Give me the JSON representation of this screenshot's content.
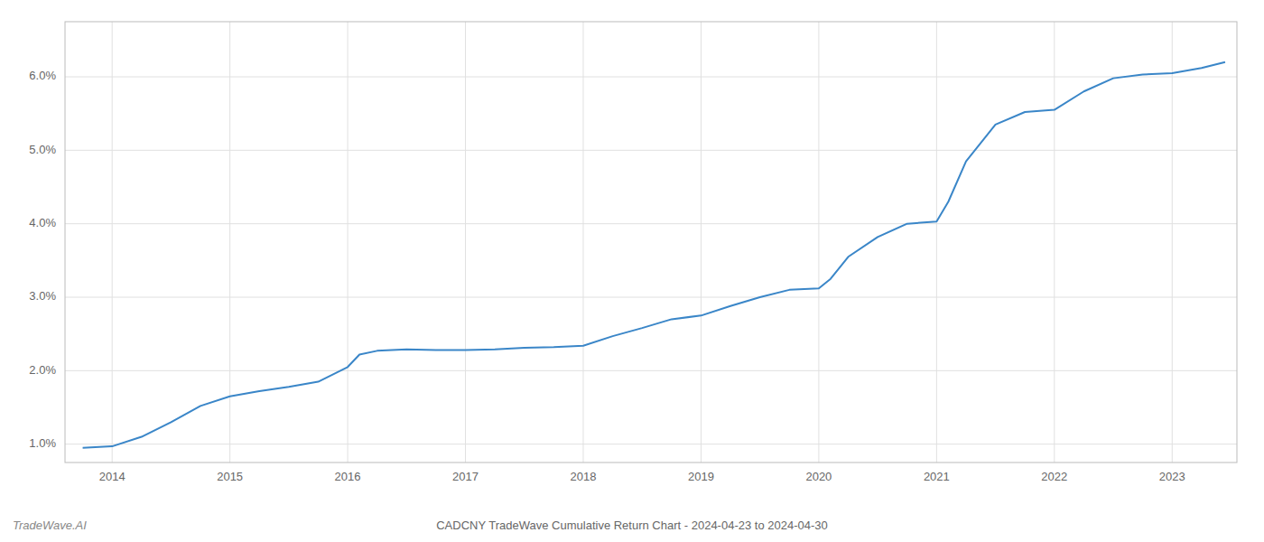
{
  "chart_data": {
    "type": "line",
    "title": "CADCNY TradeWave Cumulative Return Chart - 2024-04-23 to 2024-04-30",
    "annotations": [
      "TradeWave.AI"
    ],
    "color": "#3a86c8",
    "grid": true,
    "x": [
      2013.75,
      2014.0,
      2014.25,
      2014.5,
      2014.75,
      2015.0,
      2015.25,
      2015.5,
      2015.75,
      2016.0,
      2016.1,
      2016.25,
      2016.5,
      2016.75,
      2017.0,
      2017.25,
      2017.5,
      2017.75,
      2018.0,
      2018.25,
      2018.5,
      2018.75,
      2019.0,
      2019.25,
      2019.5,
      2019.75,
      2020.0,
      2020.1,
      2020.25,
      2020.5,
      2020.75,
      2021.0,
      2021.1,
      2021.25,
      2021.5,
      2021.75,
      2022.0,
      2022.25,
      2022.5,
      2022.75,
      2023.0,
      2023.25,
      2023.45
    ],
    "values": [
      0.95,
      0.97,
      1.1,
      1.3,
      1.52,
      1.65,
      1.72,
      1.78,
      1.85,
      2.05,
      2.22,
      2.27,
      2.29,
      2.28,
      2.28,
      2.29,
      2.31,
      2.32,
      2.34,
      2.47,
      2.58,
      2.7,
      2.75,
      2.88,
      3.0,
      3.1,
      3.12,
      3.25,
      3.55,
      3.82,
      4.0,
      4.03,
      4.3,
      4.85,
      5.35,
      5.52,
      5.55,
      5.8,
      5.98,
      6.03,
      6.05,
      6.12,
      6.2
    ],
    "xlim": [
      2013.6,
      2023.55
    ],
    "ylim": [
      0.75,
      6.75
    ],
    "xticks": [
      2014,
      2015,
      2016,
      2017,
      2018,
      2019,
      2020,
      2021,
      2022,
      2023
    ],
    "yticks": [
      {
        "value": 1.0,
        "label": "1.0%"
      },
      {
        "value": 2.0,
        "label": "2.0%"
      },
      {
        "value": 3.0,
        "label": "3.0%"
      },
      {
        "value": 4.0,
        "label": "4.0%"
      },
      {
        "value": 5.0,
        "label": "5.0%"
      },
      {
        "value": 6.0,
        "label": "6.0%"
      }
    ]
  }
}
